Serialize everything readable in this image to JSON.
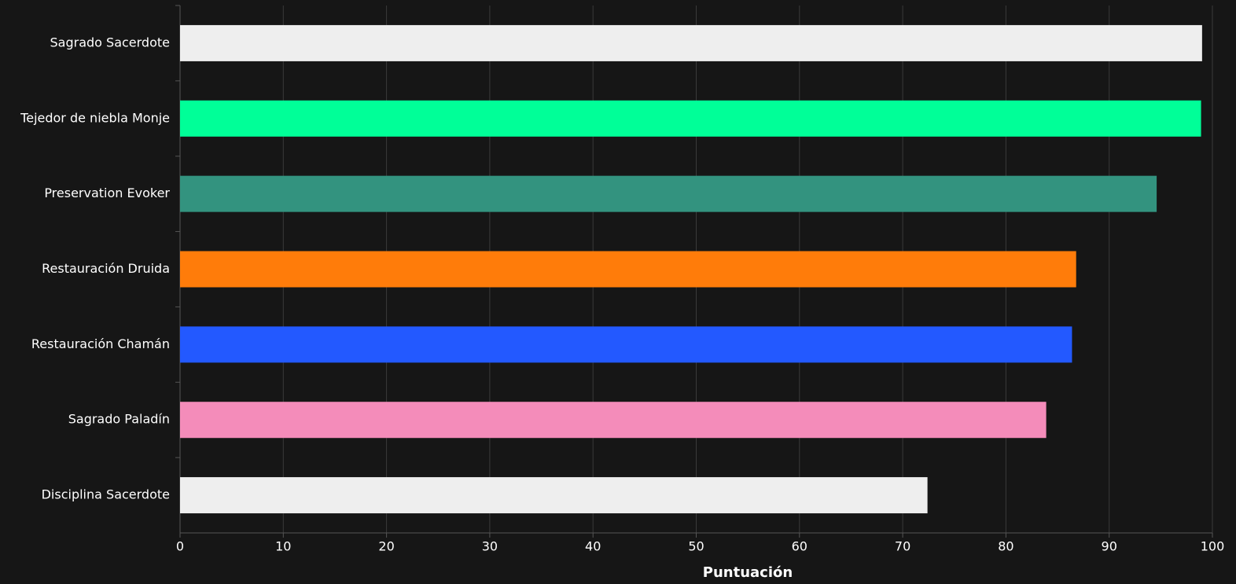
{
  "chart_data": {
    "type": "bar",
    "orientation": "horizontal",
    "x_label": "Puntuación",
    "categories": [
      "Sagrado Sacerdote",
      "Tejedor de niebla Monje",
      "Preservation Evoker",
      "Restauración Druida",
      "Restauración Chamán",
      "Sagrado Paladín",
      "Disciplina Sacerdote"
    ],
    "values": [
      99.0,
      98.9,
      94.6,
      86.8,
      86.4,
      83.9,
      72.4
    ],
    "colors": [
      "#eeeeee",
      "#00ff98",
      "#33937f",
      "#ff7c0a",
      "#2359ff",
      "#f48cba",
      "#eeeeee"
    ],
    "xlim": [
      0,
      100
    ],
    "xticks": [
      0,
      10,
      20,
      30,
      40,
      50,
      60,
      70,
      80,
      90,
      100
    ],
    "grid": true
  }
}
